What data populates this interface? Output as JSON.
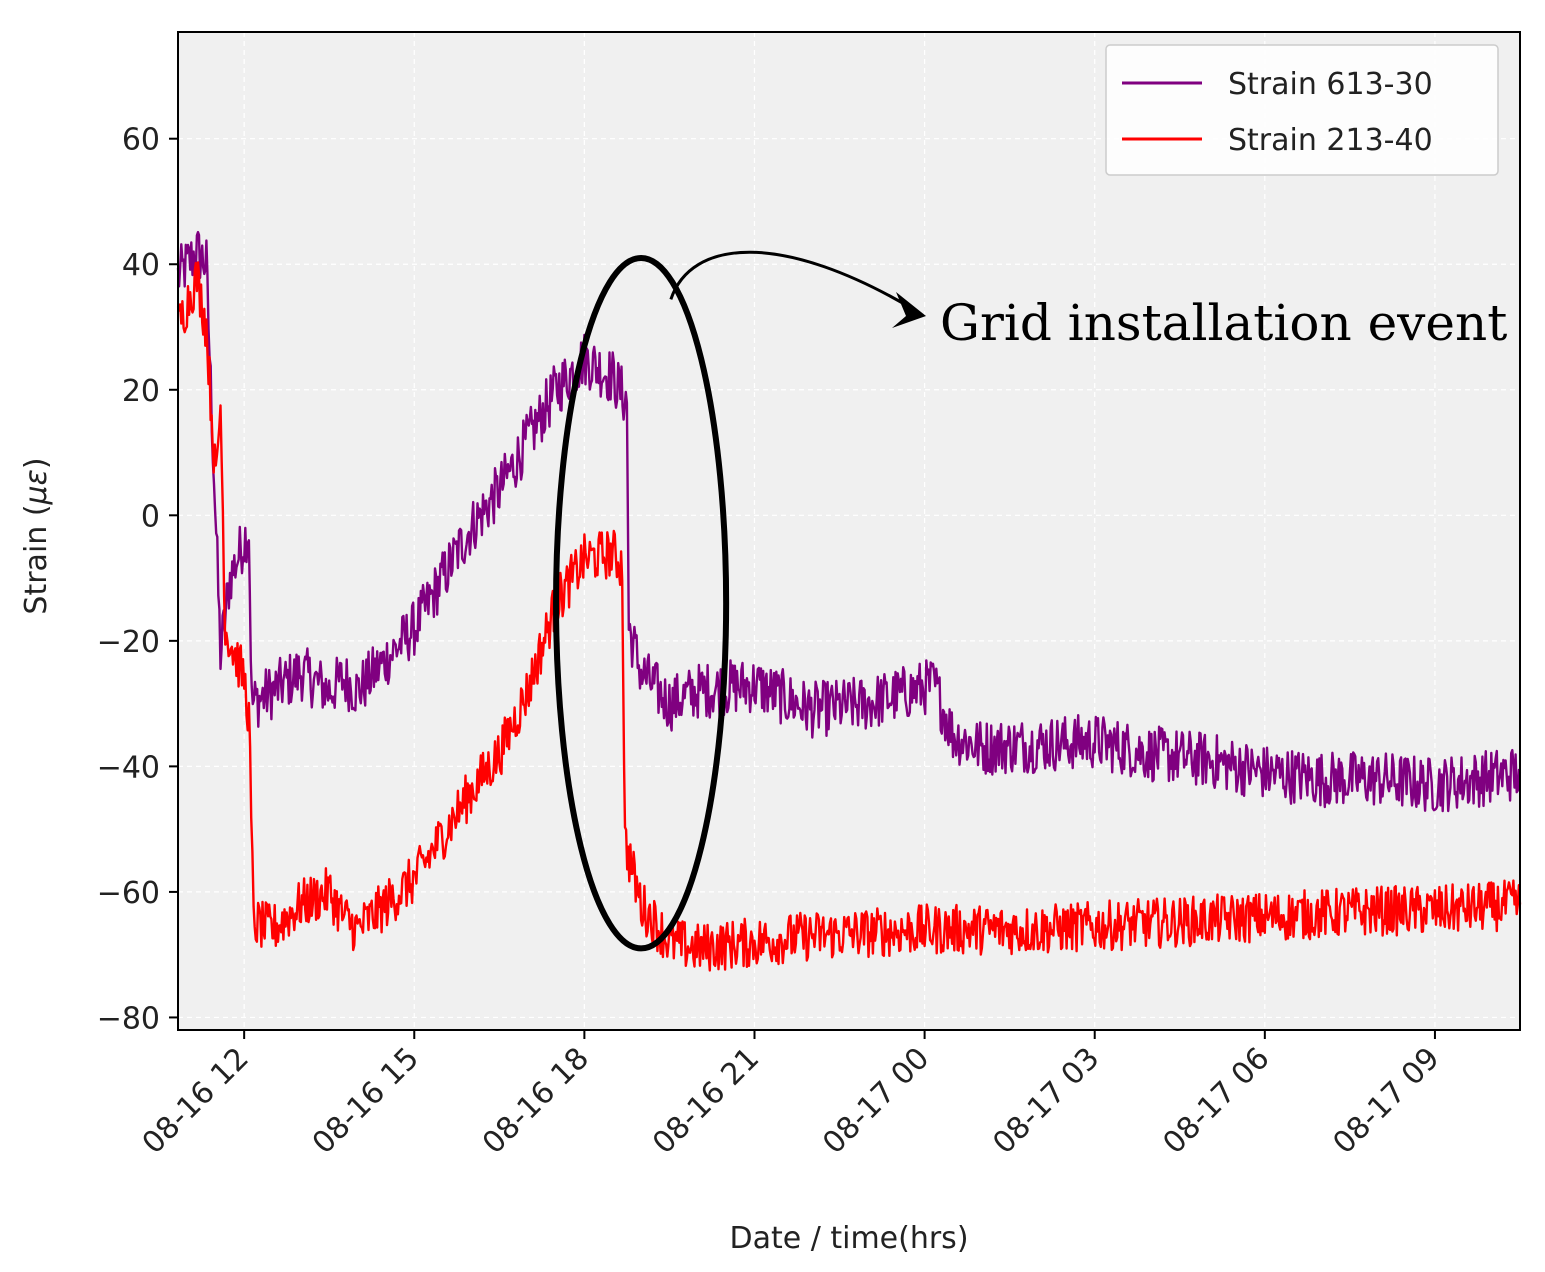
{
  "chart_data": {
    "type": "line",
    "title": "",
    "xlabel": "Date / time(hrs)",
    "ylabel": "Strain (",
    "ylabel_symbol": "με",
    "ylabel_close": ")",
    "x_start": "2018-08-16T10:50",
    "x_end": "2018-08-17T10:30",
    "x_ticks": [
      {
        "time": "2018-08-16T12:00",
        "label": "08-16 12"
      },
      {
        "time": "2018-08-16T15:00",
        "label": "08-16 15"
      },
      {
        "time": "2018-08-16T18:00",
        "label": "08-16 18"
      },
      {
        "time": "2018-08-16T21:00",
        "label": "08-16 21"
      },
      {
        "time": "2018-08-17T00:00",
        "label": "08-17 00"
      },
      {
        "time": "2018-08-17T03:00",
        "label": "08-17 03"
      },
      {
        "time": "2018-08-17T06:00",
        "label": "08-17 06"
      },
      {
        "time": "2018-08-17T09:00",
        "label": "08-17 09"
      }
    ],
    "ylim": [
      -82,
      77
    ],
    "y_ticks": [
      {
        "value": 60,
        "label": "60"
      },
      {
        "value": 40,
        "label": "40"
      },
      {
        "value": 20,
        "label": "20"
      },
      {
        "value": 0,
        "label": "0"
      },
      {
        "value": -20,
        "label": "−20"
      },
      {
        "value": -40,
        "label": "−40"
      },
      {
        "value": -60,
        "label": "−60"
      },
      {
        "value": -80,
        "label": "−80"
      }
    ],
    "grid": true,
    "legend_position": "top-right",
    "series": [
      {
        "name": "Strain 613-30",
        "color": "#800080",
        "noise": 4.5,
        "points": [
          [
            "2018-08-16T10:50",
            38
          ],
          [
            "2018-08-16T11:10",
            42
          ],
          [
            "2018-08-16T11:20",
            40
          ],
          [
            "2018-08-16T11:35",
            -22
          ],
          [
            "2018-08-16T11:45",
            -10
          ],
          [
            "2018-08-16T12:00",
            -4
          ],
          [
            "2018-08-16T12:05",
            -2
          ],
          [
            "2018-08-16T12:08",
            -30
          ],
          [
            "2018-08-16T12:30",
            -28
          ],
          [
            "2018-08-16T13:00",
            -25
          ],
          [
            "2018-08-16T13:30",
            -28
          ],
          [
            "2018-08-16T13:45",
            -26
          ],
          [
            "2018-08-16T14:00",
            -28
          ],
          [
            "2018-08-16T15:00",
            -18
          ],
          [
            "2018-08-16T16:00",
            -2
          ],
          [
            "2018-08-16T16:30",
            4
          ],
          [
            "2018-08-16T17:00",
            12
          ],
          [
            "2018-08-16T17:30",
            20
          ],
          [
            "2018-08-16T18:00",
            25
          ],
          [
            "2018-08-16T18:30",
            22
          ],
          [
            "2018-08-16T18:45",
            18
          ],
          [
            "2018-08-16T18:47",
            -18
          ],
          [
            "2018-08-16T19:00",
            -25
          ],
          [
            "2018-08-16T19:30",
            -30
          ],
          [
            "2018-08-16T20:00",
            -28
          ],
          [
            "2018-08-16T21:00",
            -27
          ],
          [
            "2018-08-16T22:00",
            -31
          ],
          [
            "2018-08-16T23:00",
            -30
          ],
          [
            "2018-08-17T00:10",
            -27
          ],
          [
            "2018-08-17T00:30",
            -35
          ],
          [
            "2018-08-17T01:00",
            -37
          ],
          [
            "2018-08-17T03:00",
            -36
          ],
          [
            "2018-08-17T04:00",
            -38
          ],
          [
            "2018-08-17T05:00",
            -39
          ],
          [
            "2018-08-17T06:00",
            -41
          ],
          [
            "2018-08-17T07:00",
            -42
          ],
          [
            "2018-08-17T08:00",
            -42
          ],
          [
            "2018-08-17T09:00",
            -43
          ],
          [
            "2018-08-17T10:30",
            -41
          ]
        ]
      },
      {
        "name": "Strain 213-40",
        "color": "#ff0000",
        "noise": 4.0,
        "points": [
          [
            "2018-08-16T10:50",
            30
          ],
          [
            "2018-08-16T11:10",
            38
          ],
          [
            "2018-08-16T11:20",
            30
          ],
          [
            "2018-08-16T11:30",
            5
          ],
          [
            "2018-08-16T11:35",
            18
          ],
          [
            "2018-08-16T11:40",
            -18
          ],
          [
            "2018-08-16T12:00",
            -26
          ],
          [
            "2018-08-16T12:05",
            -32
          ],
          [
            "2018-08-16T12:10",
            -65
          ],
          [
            "2018-08-16T12:30",
            -66
          ],
          [
            "2018-08-16T13:00",
            -62
          ],
          [
            "2018-08-16T13:30",
            -60
          ],
          [
            "2018-08-16T13:45",
            -64
          ],
          [
            "2018-08-16T14:00",
            -66
          ],
          [
            "2018-08-16T15:00",
            -58
          ],
          [
            "2018-08-16T16:00",
            -44
          ],
          [
            "2018-08-16T16:30",
            -38
          ],
          [
            "2018-08-16T17:00",
            -28
          ],
          [
            "2018-08-16T17:30",
            -14
          ],
          [
            "2018-08-16T18:00",
            -7
          ],
          [
            "2018-08-16T18:30",
            -6
          ],
          [
            "2018-08-16T18:40",
            -8
          ],
          [
            "2018-08-16T18:43",
            -52
          ],
          [
            "2018-08-16T19:00",
            -62
          ],
          [
            "2018-08-16T19:30",
            -68
          ],
          [
            "2018-08-16T20:00",
            -69
          ],
          [
            "2018-08-16T21:00",
            -68
          ],
          [
            "2018-08-16T22:00",
            -67
          ],
          [
            "2018-08-17T00:00",
            -66
          ],
          [
            "2018-08-17T02:00",
            -66
          ],
          [
            "2018-08-17T04:00",
            -65
          ],
          [
            "2018-08-17T06:00",
            -64
          ],
          [
            "2018-08-17T08:00",
            -63
          ],
          [
            "2018-08-17T09:00",
            -63
          ],
          [
            "2018-08-17T10:30",
            -62
          ]
        ]
      }
    ],
    "annotation": {
      "text": "Grid installation event",
      "ellipse_center": [
        "2018-08-16T19:00",
        -14
      ],
      "ellipse_half_width_hours": 1.5,
      "ellipse_half_height": 55
    }
  }
}
